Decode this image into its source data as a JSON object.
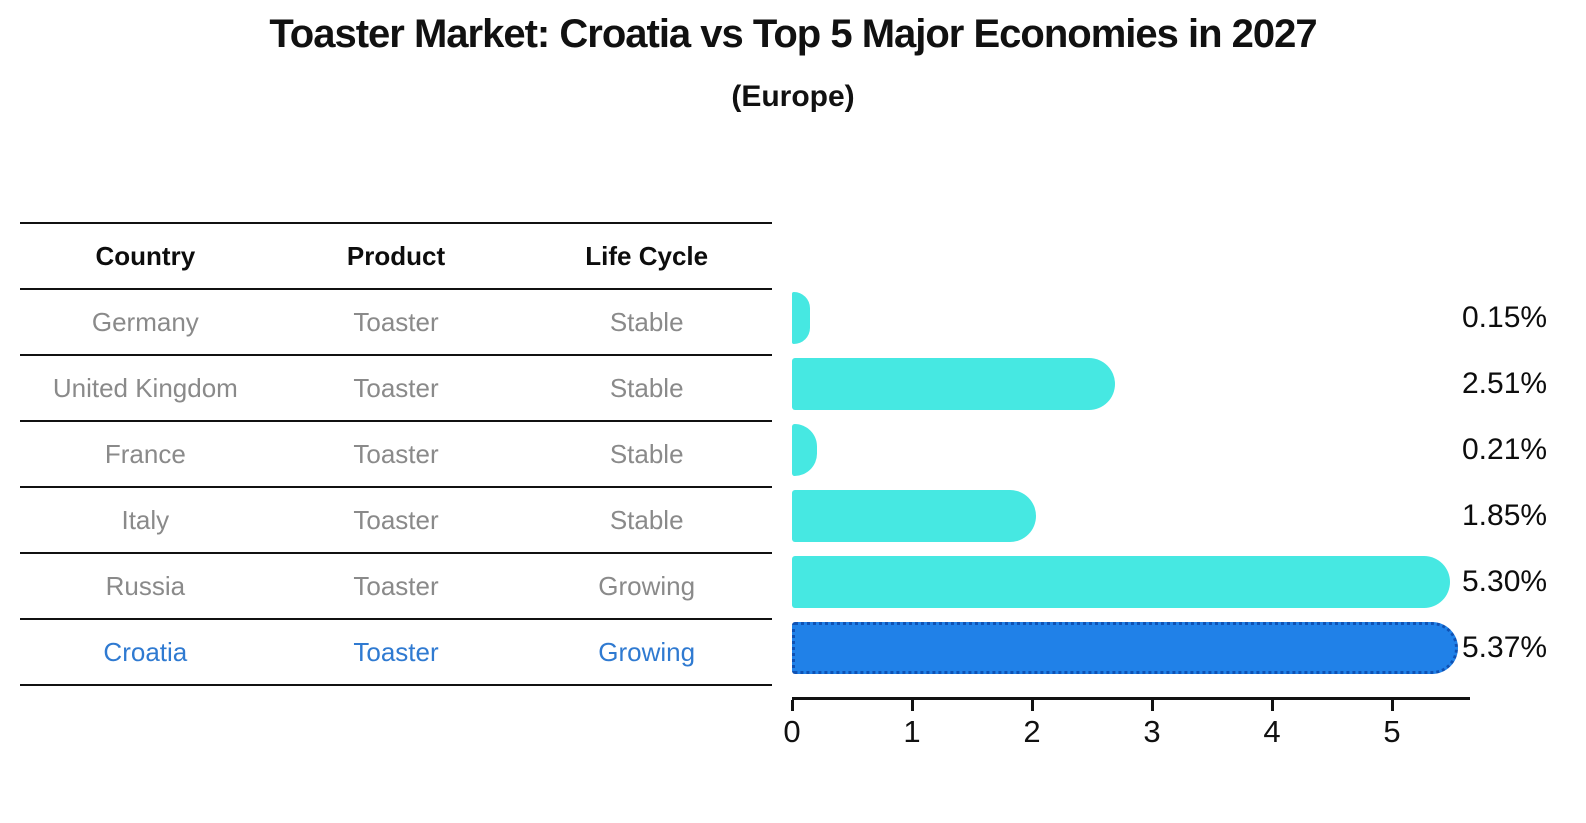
{
  "title": "Toaster Market: Croatia vs Top 5 Major Economies in 2027",
  "subtitle": "(Europe)",
  "table": {
    "headers": [
      "Country",
      "Product",
      "Life Cycle"
    ],
    "rows": [
      {
        "country": "Germany",
        "product": "Toaster",
        "life_cycle": "Stable",
        "highlight": false
      },
      {
        "country": "United Kingdom",
        "product": "Toaster",
        "life_cycle": "Stable",
        "highlight": false
      },
      {
        "country": "France",
        "product": "Toaster",
        "life_cycle": "Stable",
        "highlight": false
      },
      {
        "country": "Italy",
        "product": "Toaster",
        "life_cycle": "Stable",
        "highlight": false
      },
      {
        "country": "Russia",
        "product": "Toaster",
        "life_cycle": "Growing",
        "highlight": false
      },
      {
        "country": "Croatia",
        "product": "Toaster",
        "life_cycle": "Growing",
        "highlight": true
      }
    ]
  },
  "chart_data": {
    "type": "bar",
    "orientation": "horizontal",
    "title": "Toaster Market: Croatia vs Top 5 Major Economies in 2027",
    "subtitle": "(Europe)",
    "categories": [
      "Germany",
      "United Kingdom",
      "France",
      "Italy",
      "Russia",
      "Croatia"
    ],
    "values": [
      0.15,
      2.51,
      0.21,
      1.85,
      5.3,
      5.37
    ],
    "value_labels": [
      "0.15%",
      "2.51%",
      "0.21%",
      "1.85%",
      "5.30%",
      "5.37%"
    ],
    "x_ticks": [
      "0",
      "1",
      "2",
      "3",
      "4",
      "5"
    ],
    "xlim": [
      0,
      5.6
    ],
    "grid": false,
    "legend": "none",
    "highlight_index": 5
  },
  "colors": {
    "bar": "#46e8e2",
    "highlight_bar": "#2081e8",
    "highlight_border": "#0f52b4",
    "highlight_text": "#2f7ad1",
    "row_text": "#8a8a8a",
    "axis": "#111111"
  }
}
